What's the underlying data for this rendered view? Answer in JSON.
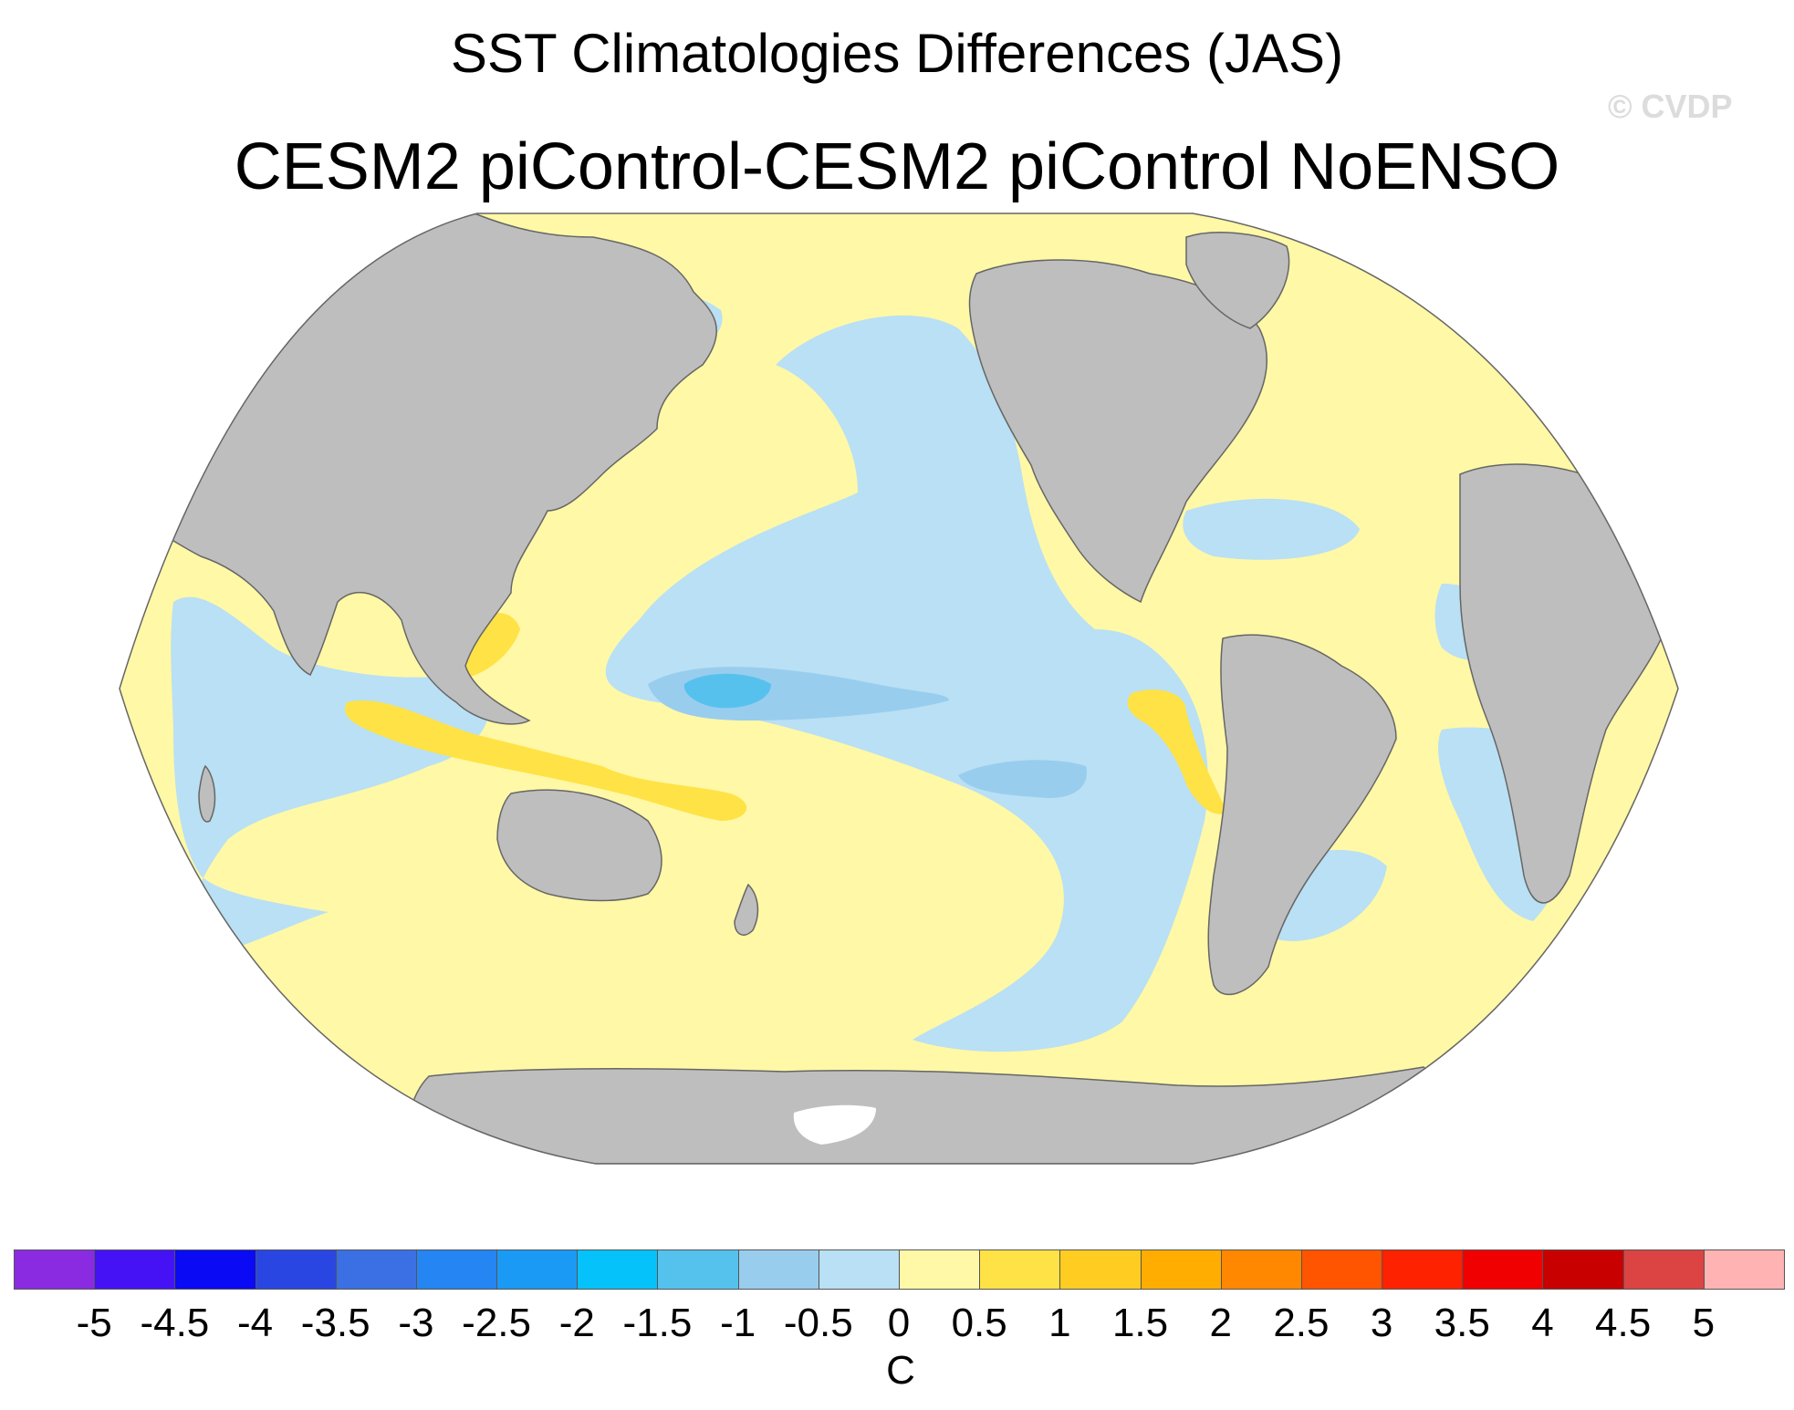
{
  "title": "SST Climatologies Differences (JAS)",
  "subtitle": "CESM2 piControl-CESM2 piControl NoENSO",
  "watermark": "© CVDP",
  "map": {
    "projection": "robinson",
    "colors": {
      "land": "#bebebe",
      "ocean_neg_0_5": "#b9e0f4",
      "ocean_neg_1_0": "#99cdee",
      "ocean_neg_1_5": "#57c1ee",
      "ocean_pos_0_5": "#fff8a6",
      "ocean_pos_1_0": "#ffe245",
      "ocean_pos_1_5": "#ffcc22",
      "sea_ice": "#ffffff",
      "outline": "#666666"
    }
  },
  "colorbar": {
    "unit": "C",
    "labels": [
      "-5",
      "-4.5",
      "-4",
      "-3.5",
      "-3",
      "-2.5",
      "-2",
      "-1.5",
      "-1",
      "-0.5",
      "0",
      "0.5",
      "1",
      "1.5",
      "2",
      "2.5",
      "3",
      "3.5",
      "4",
      "4.5",
      "5"
    ],
    "colors": [
      "#8a2be2",
      "#4512f5",
      "#0a0af5",
      "#2a46e2",
      "#3a70e3",
      "#2585f2",
      "#1a9af5",
      "#06c2fa",
      "#55c2ee",
      "#99cdee",
      "#b9e0f4",
      "#fff8a6",
      "#ffe245",
      "#ffcc22",
      "#ffad00",
      "#ff8800",
      "#ff5500",
      "#ff2200",
      "#f00000",
      "#c80000",
      "#dc4444",
      "#ffb3b3"
    ]
  }
}
